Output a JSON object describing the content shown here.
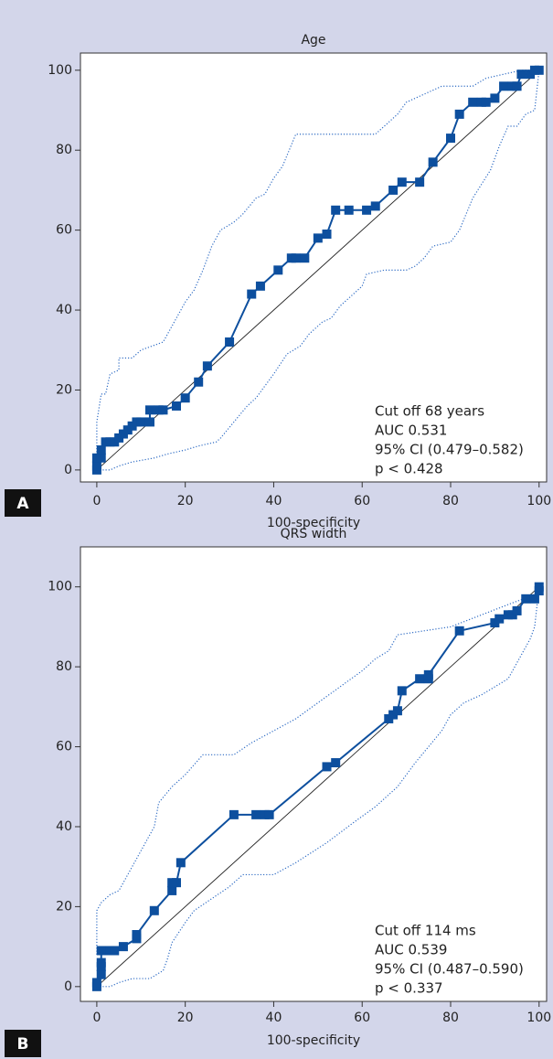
{
  "chart_data": [
    {
      "type": "line",
      "panel_label": "A",
      "title": "Age",
      "xlabel": "100-specificity",
      "annotation": [
        "Cut off 68 years",
        "AUC 0.531",
        "95% CI (0.479–0.582)",
        "p < 0.428"
      ],
      "xlim": [
        -3.7,
        101.7
      ],
      "ylim": [
        -3,
        104.3
      ],
      "xticks": [
        0,
        20,
        40,
        60,
        80,
        100
      ],
      "yticks": [
        0,
        20,
        40,
        60,
        80,
        100
      ],
      "series": [
        {
          "style": "reference",
          "color": "#222222",
          "x": [
            0,
            100
          ],
          "values": [
            0,
            100
          ]
        },
        {
          "style": "dotted",
          "color": "#2f6cc4",
          "x": [
            0,
            0,
            1,
            2,
            3,
            5,
            5,
            8,
            10,
            15,
            18,
            20,
            22,
            24,
            26,
            28,
            31,
            33,
            36,
            38,
            40,
            42,
            45,
            52,
            56,
            60,
            63,
            65,
            68,
            70,
            74,
            78,
            82,
            85,
            88,
            92,
            96,
            100
          ],
          "values": [
            3,
            12,
            19,
            19,
            24,
            25,
            28,
            28,
            30,
            32,
            38,
            42,
            45,
            50,
            56,
            60,
            62,
            64,
            68,
            69,
            73,
            76,
            84,
            84,
            84,
            84,
            84,
            86,
            89,
            92,
            94,
            96,
            96,
            96,
            98,
            99,
            100,
            100
          ]
        },
        {
          "style": "dotted",
          "color": "#2f6cc4",
          "x": [
            0,
            3,
            5,
            8,
            13,
            16,
            20,
            23,
            27,
            28,
            31,
            34,
            36,
            38,
            40,
            43,
            46,
            48,
            50,
            51,
            53,
            55,
            58,
            60,
            61,
            65,
            70,
            72,
            74,
            76,
            80,
            82,
            85,
            89,
            91,
            93,
            95,
            97,
            99,
            100
          ],
          "values": [
            0,
            0,
            1,
            2,
            3,
            4,
            5,
            6,
            7,
            8,
            12,
            16,
            18,
            21,
            24,
            29,
            31,
            34,
            36,
            37,
            38,
            41,
            44,
            46,
            49,
            50,
            50,
            51,
            53,
            56,
            57,
            60,
            68,
            75,
            81,
            86,
            86,
            89,
            90,
            100
          ]
        },
        {
          "style": "markers",
          "color": "#0d4f9e",
          "x": [
            0,
            0,
            0,
            1,
            1,
            2,
            3,
            4,
            5,
            6,
            7,
            8,
            9,
            10,
            12,
            12,
            14,
            15,
            18,
            20,
            23,
            25,
            30,
            35,
            37,
            41,
            44,
            45,
            47,
            50,
            52,
            54,
            57,
            61,
            63,
            67,
            69,
            73,
            76,
            80,
            82,
            85,
            87,
            88,
            90,
            92,
            94,
            95,
            96,
            98,
            99,
            100
          ],
          "values": [
            0,
            1,
            3,
            3,
            5,
            7,
            7,
            7,
            8,
            9,
            10,
            11,
            12,
            12,
            12,
            15,
            15,
            15,
            16,
            18,
            22,
            26,
            32,
            44,
            46,
            50,
            53,
            53,
            53,
            58,
            59,
            65,
            65,
            65,
            66,
            70,
            72,
            72,
            77,
            83,
            89,
            92,
            92,
            92,
            93,
            96,
            96,
            96,
            99,
            99,
            100,
            100
          ]
        }
      ]
    },
    {
      "type": "line",
      "panel_label": "B",
      "title": "QRS width",
      "xlabel": "100-specificity",
      "annotation": [
        "Cut off 114 ms",
        "AUC 0.539",
        "95% CI (0.487–0.590)",
        "p < 0.337"
      ],
      "xlim": [
        -3.7,
        101.7
      ],
      "ylim": [
        -3.7,
        110
      ],
      "xticks": [
        0,
        20,
        40,
        60,
        80,
        100
      ],
      "yticks": [
        0,
        20,
        40,
        60,
        80,
        100
      ],
      "series": [
        {
          "style": "reference",
          "color": "#222222",
          "x": [
            0,
            100
          ],
          "values": [
            0,
            100
          ]
        },
        {
          "style": "dotted",
          "color": "#2f6cc4",
          "x": [
            0,
            0,
            1,
            3,
            5,
            8,
            11,
            13,
            14,
            17,
            20,
            24,
            31,
            35,
            40,
            45,
            50,
            55,
            60,
            63,
            66,
            67,
            68,
            80,
            87,
            94,
            99,
            100
          ],
          "values": [
            8,
            19,
            21,
            23,
            24,
            30,
            36,
            40,
            46,
            50,
            53,
            58,
            58,
            61,
            64,
            67,
            71,
            75,
            79,
            82,
            84,
            86,
            88,
            90,
            93,
            96,
            98,
            100
          ]
        },
        {
          "style": "dotted",
          "color": "#2f6cc4",
          "x": [
            0,
            3,
            5,
            8,
            12,
            15,
            16,
            17,
            20,
            22,
            26,
            30,
            33,
            40,
            45,
            52,
            58,
            63,
            68,
            72,
            75,
            78,
            80,
            83,
            87,
            93,
            96,
            98,
            99,
            100
          ],
          "values": [
            0,
            0,
            1,
            2,
            2,
            4,
            7,
            11,
            16,
            19,
            22,
            25,
            28,
            28,
            31,
            36,
            41,
            45,
            50,
            56,
            60,
            64,
            68,
            71,
            73,
            77,
            83,
            87,
            90,
            100
          ]
        },
        {
          "style": "markers",
          "color": "#0d4f9e",
          "x": [
            0,
            0,
            1,
            1,
            1,
            1,
            3,
            4,
            6,
            9,
            9,
            13,
            17,
            17,
            18,
            19,
            31,
            36,
            38,
            39,
            52,
            54,
            66,
            67,
            68,
            69,
            73,
            75,
            75,
            82,
            90,
            91,
            93,
            94,
            95,
            97,
            99,
            100,
            100
          ],
          "values": [
            0,
            1,
            3,
            5,
            6,
            9,
            9,
            9,
            10,
            12,
            13,
            19,
            24,
            26,
            26,
            31,
            43,
            43,
            43,
            43,
            55,
            56,
            67,
            68,
            69,
            74,
            77,
            77,
            78,
            89,
            91,
            92,
            93,
            93,
            94,
            97,
            97,
            99,
            100
          ]
        }
      ]
    }
  ]
}
